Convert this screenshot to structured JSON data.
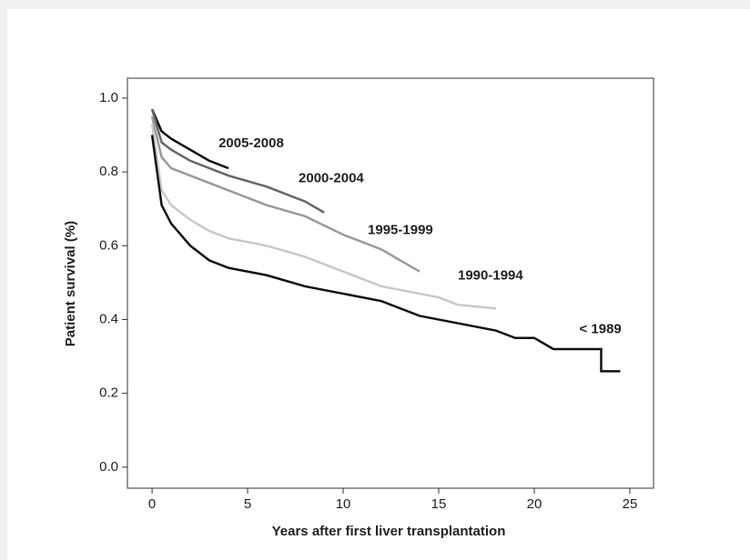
{
  "chart_data": {
    "type": "line",
    "x_label": "Years after first liver transplantation",
    "y_label": "Patient survival (%)",
    "xlim": [
      -1.29,
      26.24
    ],
    "ylim": [
      -0.057,
      1.054
    ],
    "xticks": [
      0,
      5,
      10,
      15,
      20,
      25
    ],
    "yticks": [
      {
        "value": 0,
        "label": "0.0"
      },
      0.2,
      0.4,
      0.6,
      0.8,
      {
        "value": 1,
        "label": "1.0"
      }
    ],
    "series": [
      {
        "name": "2005-2008",
        "color": "#111111",
        "x": [
          0,
          0.5,
          1,
          2,
          3,
          4
        ],
        "values": [
          0.97,
          0.91,
          0.89,
          0.86,
          0.83,
          0.81
        ]
      },
      {
        "name": "2000-2004",
        "color": "#666666",
        "x": [
          0,
          0.5,
          1,
          2,
          4,
          6,
          8,
          9
        ],
        "values": [
          0.97,
          0.88,
          0.86,
          0.83,
          0.79,
          0.76,
          0.72,
          0.69
        ]
      },
      {
        "name": "1995-1999",
        "color": "#9a9a9a",
        "x": [
          0,
          0.5,
          1,
          2,
          4,
          6,
          8,
          10,
          12,
          14
        ],
        "values": [
          0.95,
          0.84,
          0.81,
          0.79,
          0.75,
          0.71,
          0.68,
          0.63,
          0.59,
          0.53
        ]
      },
      {
        "name": "1990-1994",
        "color": "#c8c8c8",
        "x": [
          0,
          0.5,
          1,
          2,
          3,
          4,
          6,
          8,
          10,
          12,
          14,
          15,
          16,
          18
        ],
        "values": [
          0.93,
          0.75,
          0.71,
          0.67,
          0.64,
          0.62,
          0.6,
          0.57,
          0.53,
          0.49,
          0.47,
          0.46,
          0.44,
          0.43
        ]
      },
      {
        "name": "< 1989",
        "color": "#111111",
        "x": [
          0,
          0.5,
          1,
          2,
          3,
          4,
          6,
          8,
          10,
          12,
          14,
          16,
          18,
          19,
          20,
          21,
          23.5,
          23.5,
          24.5
        ],
        "values": [
          0.9,
          0.71,
          0.66,
          0.6,
          0.56,
          0.54,
          0.52,
          0.49,
          0.47,
          0.45,
          0.41,
          0.39,
          0.37,
          0.35,
          0.35,
          0.32,
          0.32,
          0.26,
          0.26
        ]
      }
    ]
  }
}
